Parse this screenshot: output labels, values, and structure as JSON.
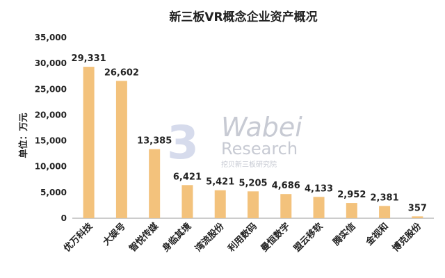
{
  "chart_data": {
    "type": "bar",
    "title": "新三板VR概念企业资产概况",
    "ylabel": "单位：万元",
    "xlabel": "",
    "categories": [
      "优万科技",
      "大娱号",
      "智悦传媒",
      "身临其境",
      "湾流股份",
      "利用数码",
      "曼恒数字",
      "盟云移软",
      "腾实信",
      "金视和",
      "博克股份"
    ],
    "values": [
      29331,
      26602,
      13385,
      6421,
      5421,
      5205,
      4686,
      4133,
      2952,
      2381,
      357
    ],
    "value_labels": [
      "29,331",
      "26,602",
      "13,385",
      "6,421",
      "5,421",
      "5,205",
      "4,686",
      "4,133",
      "2,952",
      "2,381",
      "357"
    ],
    "ylim": [
      0,
      35000
    ],
    "yticks": [
      0,
      5000,
      10000,
      15000,
      20000,
      25000,
      30000,
      35000
    ],
    "ytick_labels": [
      "0",
      "5,000",
      "10,000",
      "15,000",
      "20,000",
      "25,000",
      "30,000",
      "35,000"
    ],
    "grid": false,
    "legend": "none",
    "bar_color": "#f3c27c"
  },
  "watermark": {
    "logo_char": "3",
    "brand": "Wabei",
    "sub": "Research",
    "tagline": "挖贝新三板研究院"
  }
}
